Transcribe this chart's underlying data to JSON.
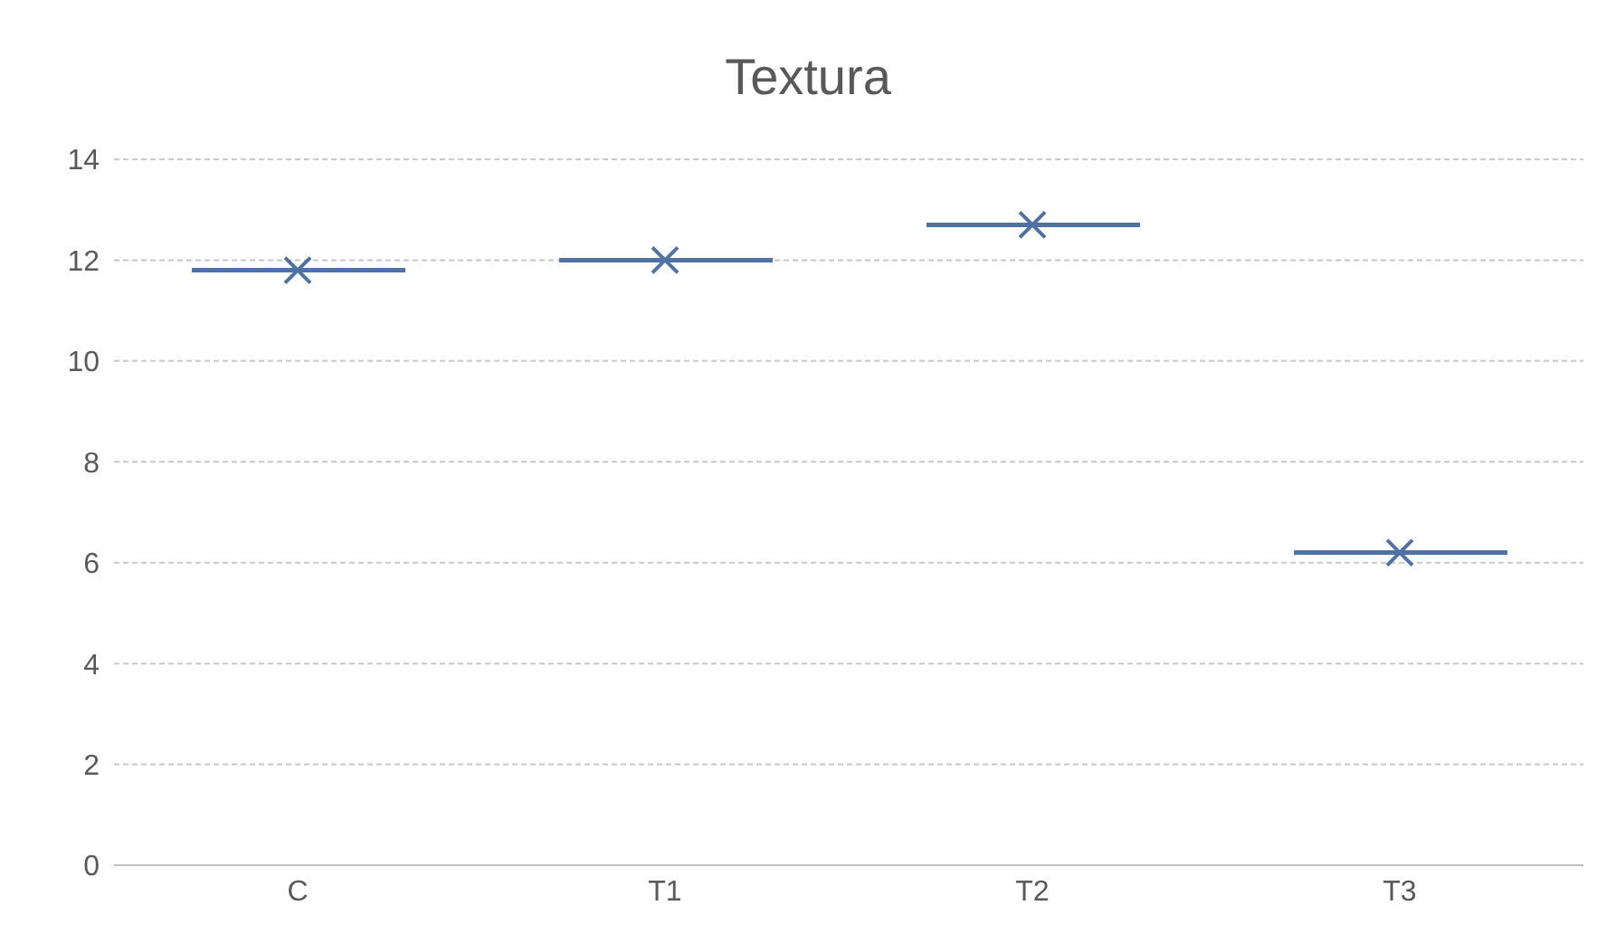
{
  "chart_data": {
    "type": "box",
    "title": "Textura",
    "categories": [
      "C",
      "T1",
      "T2",
      "T3"
    ],
    "color": "#4f72a6",
    "marker": "cross",
    "grid": "y",
    "ylim": [
      0,
      14
    ],
    "yticks": [
      0,
      2,
      4,
      6,
      8,
      10,
      12,
      14
    ],
    "boxes": [
      {
        "low": 11.8,
        "q1": 11.8,
        "median": 11.8,
        "q3": 11.8,
        "high": 11.8,
        "mean": 11.8
      },
      {
        "low": 12.0,
        "q1": 12.0,
        "median": 12.0,
        "q3": 12.0,
        "high": 12.0,
        "mean": 12.0
      },
      {
        "low": 12.7,
        "q1": 12.7,
        "median": 12.7,
        "q3": 12.7,
        "high": 12.7,
        "mean": 12.7
      },
      {
        "low": 6.2,
        "q1": 6.2,
        "median": 6.2,
        "q3": 6.2,
        "high": 6.2,
        "mean": 6.2
      }
    ]
  }
}
